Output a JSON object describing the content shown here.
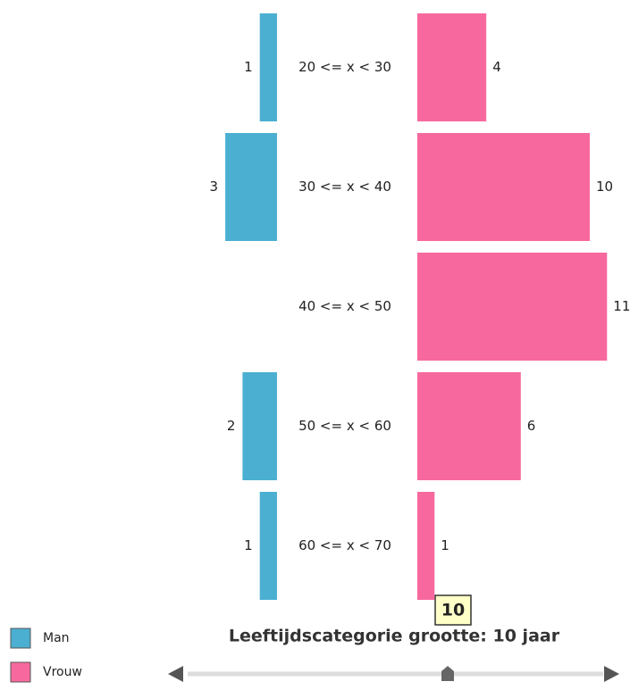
{
  "chart_data": {
    "type": "bar",
    "categories": [
      "20 <= x < 30",
      "30 <= x < 40",
      "40 <= x < 50",
      "50 <= x < 60",
      "60 <= x < 70"
    ],
    "series": [
      {
        "name": "Man",
        "color": "#4bafd1",
        "values": [
          1,
          3,
          null,
          2,
          1
        ]
      },
      {
        "name": "Vrouw",
        "color": "#f7699e",
        "values": [
          4,
          10,
          11,
          6,
          1
        ]
      }
    ],
    "slider": {
      "title": "Leeftijdscategorie grootte: 10 jaar",
      "value": "10"
    }
  }
}
